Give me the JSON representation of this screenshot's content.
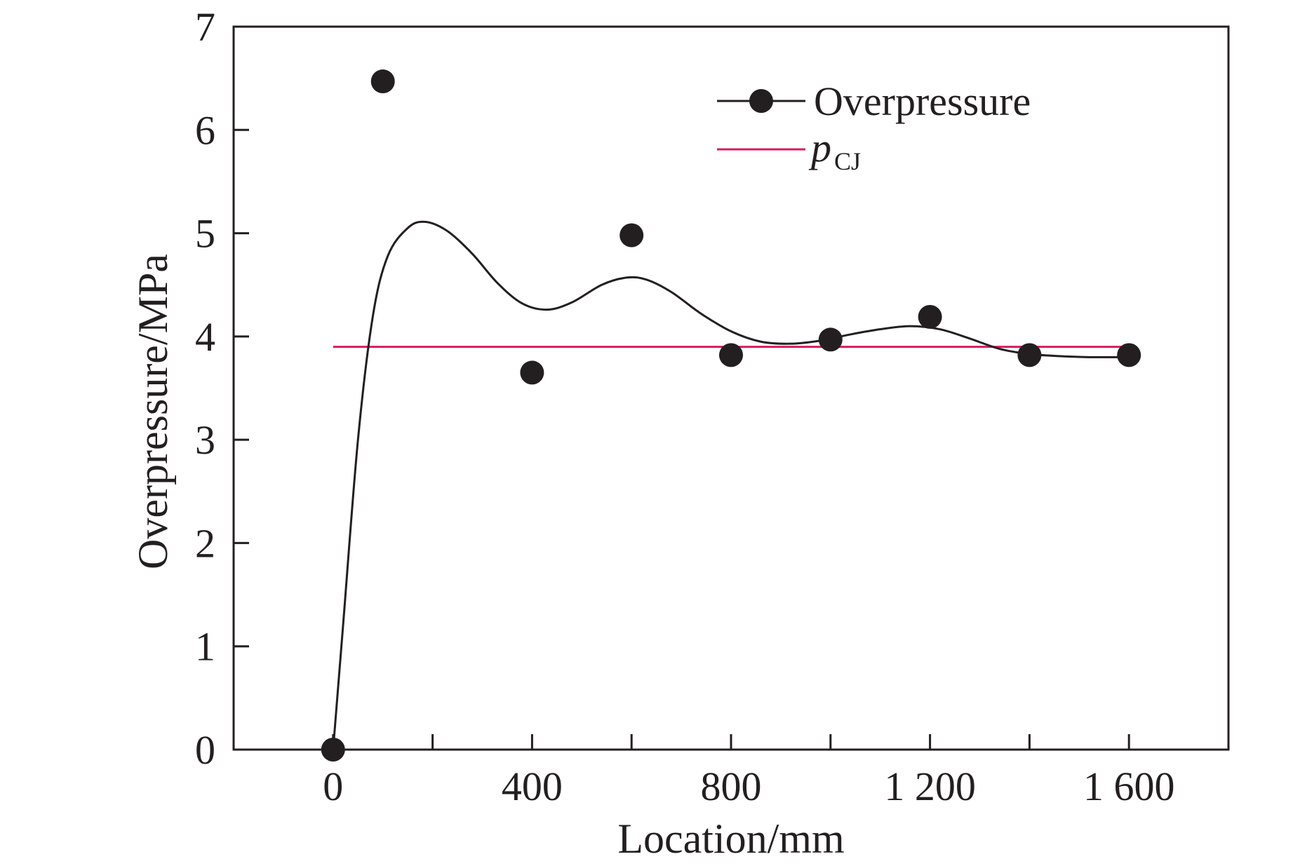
{
  "chart_data": {
    "type": "scatter",
    "xlabel": "Location/mm",
    "ylabel": "Overpressure/MPa",
    "xlim": [
      -200,
      1800
    ],
    "ylim": [
      0,
      7
    ],
    "x_ticks": [
      0,
      400,
      800,
      1200,
      1600
    ],
    "x_tick_labels": [
      "0",
      "400",
      "800",
      "1 200",
      "1 600"
    ],
    "x_minor_ticks": [
      200,
      600,
      1000,
      1400
    ],
    "y_ticks": [
      0,
      1,
      2,
      3,
      4,
      5,
      6,
      7
    ],
    "y_tick_labels": [
      "0",
      "1",
      "2",
      "3",
      "4",
      "5",
      "6",
      "7"
    ],
    "grid": false,
    "legend_position": "top-right",
    "series": [
      {
        "name": "Overpressure",
        "kind": "scatter+smooth-line",
        "color": "#231f20",
        "points": [
          {
            "x": 0,
            "y": 0.0
          },
          {
            "x": 100,
            "y": 6.47
          },
          {
            "x": 400,
            "y": 3.65
          },
          {
            "x": 600,
            "y": 4.98
          },
          {
            "x": 800,
            "y": 3.82
          },
          {
            "x": 1000,
            "y": 3.97
          },
          {
            "x": 1200,
            "y": 4.19
          },
          {
            "x": 1400,
            "y": 3.82
          },
          {
            "x": 1600,
            "y": 3.82
          }
        ],
        "fit_curve": [
          {
            "x": 0,
            "y": 0.0
          },
          {
            "x": 20,
            "y": 1.2
          },
          {
            "x": 50,
            "y": 3.0
          },
          {
            "x": 80,
            "y": 4.2
          },
          {
            "x": 110,
            "y": 4.78
          },
          {
            "x": 150,
            "y": 5.05
          },
          {
            "x": 185,
            "y": 5.11
          },
          {
            "x": 230,
            "y": 5.02
          },
          {
            "x": 280,
            "y": 4.8
          },
          {
            "x": 330,
            "y": 4.52
          },
          {
            "x": 380,
            "y": 4.32
          },
          {
            "x": 430,
            "y": 4.26
          },
          {
            "x": 480,
            "y": 4.33
          },
          {
            "x": 540,
            "y": 4.5
          },
          {
            "x": 590,
            "y": 4.57
          },
          {
            "x": 630,
            "y": 4.55
          },
          {
            "x": 680,
            "y": 4.43
          },
          {
            "x": 740,
            "y": 4.22
          },
          {
            "x": 800,
            "y": 4.05
          },
          {
            "x": 860,
            "y": 3.95
          },
          {
            "x": 920,
            "y": 3.93
          },
          {
            "x": 980,
            "y": 3.96
          },
          {
            "x": 1040,
            "y": 4.02
          },
          {
            "x": 1100,
            "y": 4.07
          },
          {
            "x": 1160,
            "y": 4.1
          },
          {
            "x": 1220,
            "y": 4.07
          },
          {
            "x": 1280,
            "y": 3.98
          },
          {
            "x": 1340,
            "y": 3.88
          },
          {
            "x": 1400,
            "y": 3.83
          },
          {
            "x": 1460,
            "y": 3.81
          },
          {
            "x": 1520,
            "y": 3.8
          },
          {
            "x": 1600,
            "y": 3.8
          }
        ]
      },
      {
        "name_main": "p",
        "name_sub": "CJ",
        "kind": "constant-line",
        "color": "#d81b60",
        "x_range": [
          0,
          1600
        ],
        "y": 3.9
      }
    ]
  }
}
